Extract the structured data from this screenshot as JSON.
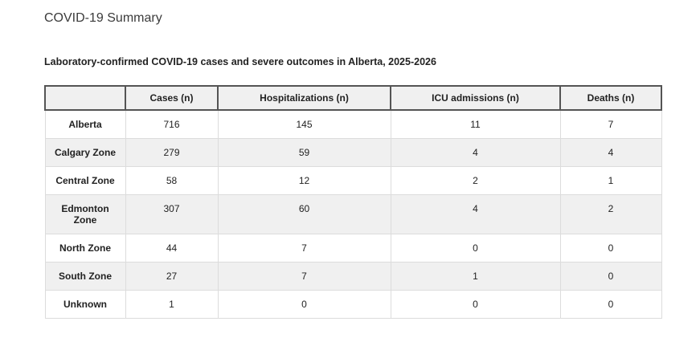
{
  "page": {
    "title": "COVID-19 Summary",
    "table_caption": "Laboratory-confirmed COVID-19 cases and severe outcomes in Alberta, 2025-2026"
  },
  "colors": {
    "header_background": "#f0f0f0",
    "stripe_background": "#f0f0f0",
    "header_border": "#545454",
    "body_border": "#dcdcdc",
    "title_text": "#3b3b3b",
    "body_text": "#222222"
  },
  "table": {
    "columns": [
      "",
      "Cases (n)",
      "Hospitalizations (n)",
      "ICU admissions (n)",
      "Deaths (n)"
    ],
    "rows": [
      {
        "label": "Alberta",
        "values": [
          "716",
          "145",
          "11",
          "7"
        ]
      },
      {
        "label": "Calgary Zone",
        "values": [
          "279",
          "59",
          "4",
          "4"
        ]
      },
      {
        "label": "Central Zone",
        "values": [
          "58",
          "12",
          "2",
          "1"
        ]
      },
      {
        "label": "Edmonton Zone",
        "values": [
          "307",
          "60",
          "4",
          "2"
        ]
      },
      {
        "label": "North Zone",
        "values": [
          "44",
          "7",
          "0",
          "0"
        ]
      },
      {
        "label": "South Zone",
        "values": [
          "27",
          "7",
          "1",
          "0"
        ]
      },
      {
        "label": "Unknown",
        "values": [
          "1",
          "0",
          "0",
          "0"
        ]
      }
    ]
  }
}
